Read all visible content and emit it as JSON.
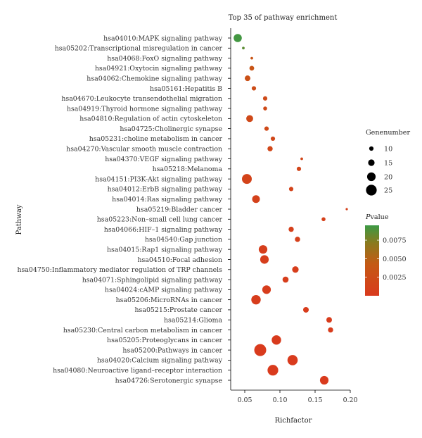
{
  "chart_data": {
    "type": "scatter",
    "title": "Top 35 of pathway enrichment",
    "xlabel": "Richfactor",
    "ylabel": "Pathway",
    "xlim": [
      0.03,
      0.2
    ],
    "x_ticks": [
      0.05,
      0.1,
      0.15,
      0.2
    ],
    "x_tick_labels": [
      "0.05",
      "0.10",
      "0.15",
      "0.20"
    ],
    "grid": false,
    "size_legend": {
      "title": "Genenumber",
      "values": [
        10,
        15,
        20,
        25
      ],
      "labels": [
        "10",
        "15",
        "20",
        "25"
      ],
      "placement": "right"
    },
    "color_legend": {
      "title_italic": "P",
      "title_rest": "value",
      "ticks": [
        0.0075,
        0.005,
        0.0025
      ],
      "tick_labels": [
        "0.0075",
        "0.0050",
        "0.0025"
      ],
      "range": [
        0,
        0.0095
      ],
      "colors": [
        "#d93a1d",
        "#c45a14",
        "#8a7a1e",
        "#3c9a45"
      ],
      "placement": "right"
    },
    "points": [
      {
        "pathway": "hsa04010:MAPK signaling pathway",
        "x": 0.04,
        "size": 19,
        "p": 0.0093
      },
      {
        "pathway": "hsa05202:Transcriptional misregulation in cancer",
        "x": 0.048,
        "size": 6,
        "p": 0.0085
      },
      {
        "pathway": "hsa04068:FoxO signaling pathway",
        "x": 0.06,
        "size": 6,
        "p": 0.0035
      },
      {
        "pathway": "hsa04921:Oxytocin signaling pathway",
        "x": 0.06,
        "size": 11,
        "p": 0.0035
      },
      {
        "pathway": "hsa04062:Chemokine signaling pathway",
        "x": 0.054,
        "size": 13,
        "p": 0.003
      },
      {
        "pathway": "hsa05161:Hepatitis B",
        "x": 0.063,
        "size": 10,
        "p": 0.0025
      },
      {
        "pathway": "hsa04670:Leukocyte transendothelial migration",
        "x": 0.079,
        "size": 10,
        "p": 0.0022
      },
      {
        "pathway": "hsa04919:Thyroid hormone signaling pathway",
        "x": 0.079,
        "size": 9,
        "p": 0.0022
      },
      {
        "pathway": "hsa04810:Regulation of actin cytoskeleton",
        "x": 0.057,
        "size": 16,
        "p": 0.002
      },
      {
        "pathway": "hsa04725:Cholinergic synapse",
        "x": 0.081,
        "size": 10,
        "p": 0.002
      },
      {
        "pathway": "hsa05231:choline metabolism in cancer",
        "x": 0.09,
        "size": 10,
        "p": 0.0018
      },
      {
        "pathway": "hsa04270:Vascular smooth muscle contraction",
        "x": 0.086,
        "size": 12,
        "p": 0.0017
      },
      {
        "pathway": "hsa04370:VEGF signaling pathway",
        "x": 0.131,
        "size": 6,
        "p": 0.0016
      },
      {
        "pathway": "hsa05218:Melanoma",
        "x": 0.127,
        "size": 10,
        "p": 0.0015
      },
      {
        "pathway": "hsa04151:PI3K-Akt signaling pathway",
        "x": 0.053,
        "size": 23,
        "p": 0.0012
      },
      {
        "pathway": "hsa04012:ErbB signaling pathway",
        "x": 0.116,
        "size": 10,
        "p": 0.0012
      },
      {
        "pathway": "hsa04014:Ras signaling pathway",
        "x": 0.066,
        "size": 18,
        "p": 0.001
      },
      {
        "pathway": "hsa05219:Bladder cancer",
        "x": 0.195,
        "size": 5,
        "p": 0.001
      },
      {
        "pathway": "hsa05223:Non–small cell lung cancer",
        "x": 0.162,
        "size": 9,
        "p": 0.0009
      },
      {
        "pathway": "hsa04066:HIF–1 signaling pathway",
        "x": 0.116,
        "size": 12,
        "p": 0.0008
      },
      {
        "pathway": "hsa04540:Gap junction",
        "x": 0.125,
        "size": 12,
        "p": 0.0008
      },
      {
        "pathway": "hsa04015:Rap1 signaling pathway",
        "x": 0.076,
        "size": 20,
        "p": 0.0006
      },
      {
        "pathway": "hsa04510:Focal adhesion",
        "x": 0.078,
        "size": 20,
        "p": 0.0006
      },
      {
        "pathway": "hsa04750:Inflammatory mediator regulation of TRP channels",
        "x": 0.122,
        "size": 15,
        "p": 0.0005
      },
      {
        "pathway": "hsa04071:Sphingolipid signaling pathway",
        "x": 0.108,
        "size": 14,
        "p": 0.0005
      },
      {
        "pathway": "hsa04024:cAMP signaling pathway",
        "x": 0.081,
        "size": 20,
        "p": 0.0004
      },
      {
        "pathway": "hsa05206:MicroRNAs in cancer",
        "x": 0.066,
        "size": 22,
        "p": 0.0004
      },
      {
        "pathway": "hsa05215:Prostate cancer",
        "x": 0.137,
        "size": 13,
        "p": 0.0003
      },
      {
        "pathway": "hsa05214:Glioma",
        "x": 0.17,
        "size": 13,
        "p": 0.0003
      },
      {
        "pathway": "hsa05230:Central carbon metabolism in cancer",
        "x": 0.172,
        "size": 12,
        "p": 0.0003
      },
      {
        "pathway": "hsa05205:Proteoglycans in cancer",
        "x": 0.095,
        "size": 22,
        "p": 0.0002
      },
      {
        "pathway": "hsa05200:Pathways in cancer",
        "x": 0.072,
        "size": 28,
        "p": 0.0001
      },
      {
        "pathway": "hsa04020:Calcium signaling pathway",
        "x": 0.118,
        "size": 24,
        "p": 0.0001
      },
      {
        "pathway": "hsa04080:Neuroactive ligand–receptor interaction",
        "x": 0.09,
        "size": 25,
        "p": 0.0001
      },
      {
        "pathway": "hsa04726:Serotonergic synapse",
        "x": 0.163,
        "size": 20,
        "p": 0.0001
      }
    ]
  }
}
